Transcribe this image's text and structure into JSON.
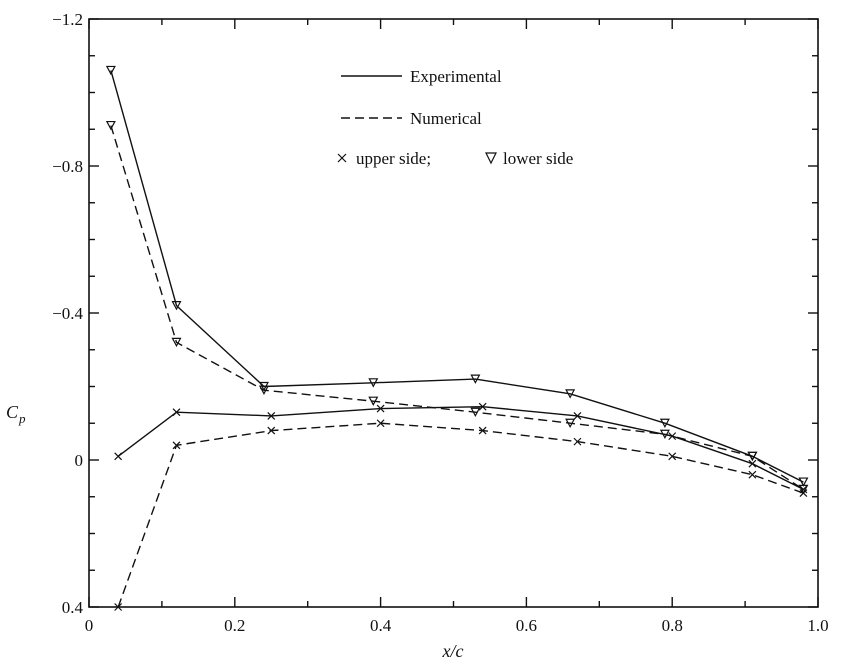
{
  "chart_data": {
    "type": "line",
    "xlabel": "x/c",
    "ylabel": "C",
    "ylabel_sub": "p",
    "xlim": [
      0,
      1.0
    ],
    "ylim": [
      0.4,
      -1.2
    ],
    "y_inverted": true,
    "x_ticks": [
      "0",
      "0.2",
      "0.4",
      "0.6",
      "0.8",
      "1.0"
    ],
    "x_tick_values": [
      0,
      0.2,
      0.4,
      0.6,
      0.8,
      1.0
    ],
    "y_ticks": [
      "−1.2",
      "−0.8",
      "−0.4",
      "0",
      "0.4"
    ],
    "y_tick_values": [
      -1.2,
      -0.8,
      -0.4,
      0,
      0.4
    ],
    "grid": false,
    "legend_placement": "top-center",
    "legend": {
      "experimental": "Experimental",
      "numerical": "Numerical",
      "upper": "upper side;",
      "lower": "lower side"
    },
    "series": [
      {
        "line": "solid",
        "marker": "triangle",
        "x": [
          0.03,
          0.12,
          0.24,
          0.39,
          0.53,
          0.66,
          0.79,
          0.91,
          0.98
        ],
        "y": [
          -1.06,
          -0.42,
          -0.2,
          -0.21,
          -0.22,
          -0.18,
          -0.1,
          -0.01,
          0.06
        ]
      },
      {
        "line": "dashed",
        "marker": "triangle",
        "x": [
          0.03,
          0.12,
          0.24,
          0.39,
          0.53,
          0.66,
          0.79,
          0.91,
          0.98
        ],
        "y": [
          -0.91,
          -0.32,
          -0.19,
          -0.16,
          -0.13,
          -0.1,
          -0.07,
          -0.01,
          0.08
        ]
      },
      {
        "line": "solid",
        "marker": "cross",
        "x": [
          0.04,
          0.12,
          0.25,
          0.4,
          0.54,
          0.67,
          0.8,
          0.91,
          0.98
        ],
        "y": [
          -0.01,
          -0.13,
          -0.12,
          -0.14,
          -0.145,
          -0.12,
          -0.065,
          0.01,
          0.08
        ]
      },
      {
        "line": "dashed",
        "marker": "cross",
        "x": [
          0.04,
          0.12,
          0.25,
          0.4,
          0.54,
          0.67,
          0.8,
          0.91,
          0.98
        ],
        "y": [
          0.4,
          -0.04,
          -0.08,
          -0.1,
          -0.08,
          -0.05,
          -0.01,
          0.04,
          0.09
        ]
      }
    ]
  }
}
